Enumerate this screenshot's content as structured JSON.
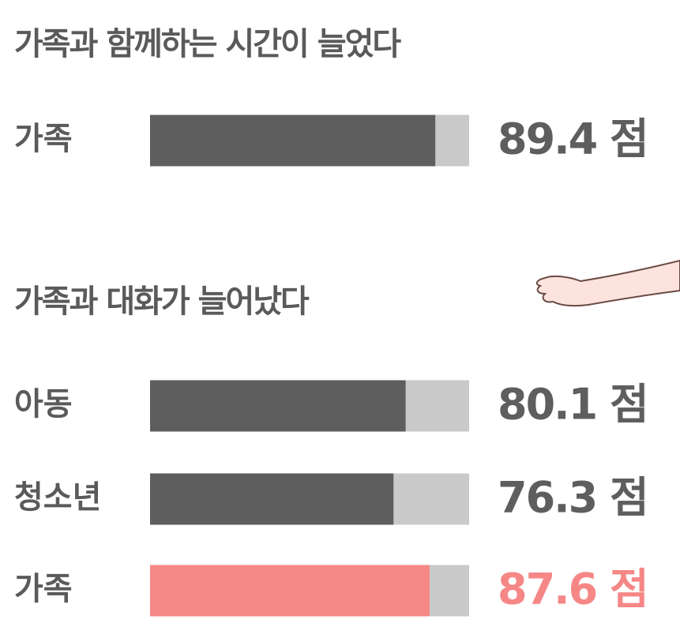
{
  "chart_data": [
    {
      "type": "hbar",
      "title": "가족과 함께하는 시간이 늘었다",
      "categories": [
        "가족"
      ],
      "values": [
        89.4
      ],
      "value_labels": [
        "89.4 점"
      ],
      "colors": [
        "#5e5e5e"
      ],
      "track_color": "#c9c9c9",
      "xlim": [
        0,
        100
      ]
    },
    {
      "type": "hbar",
      "title": "가족과 대화가 늘어났다",
      "categories": [
        "아동",
        "청소년",
        "가족"
      ],
      "values": [
        80.1,
        76.3,
        87.6
      ],
      "value_labels": [
        "80.1 점",
        "76.3 점",
        "87.6 점"
      ],
      "colors": [
        "#5e5e5e",
        "#5e5e5e",
        "#f58786"
      ],
      "track_color": "#c9c9c9",
      "xlim": [
        0,
        100
      ]
    }
  ]
}
